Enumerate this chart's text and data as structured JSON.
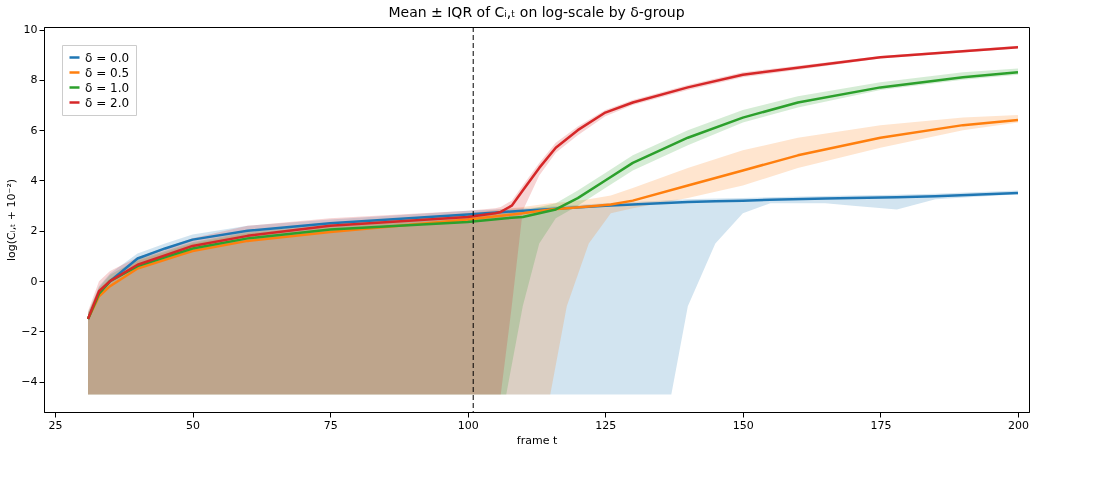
{
  "chart_data": {
    "type": "line",
    "title": "Mean ± IQR of Cᵢ,ₜ on log-scale by δ-group",
    "xlabel": "frame t",
    "ylabel": "log(Cᵢ,ₜ + 10⁻²)",
    "xlim": [
      23,
      202
    ],
    "ylim": [
      -5.2,
      10.1
    ],
    "xticks": [
      25,
      50,
      75,
      100,
      125,
      150,
      175,
      200
    ],
    "yticks": [
      -4,
      -2,
      0,
      2,
      4,
      6,
      8,
      10
    ],
    "grid": false,
    "legend": "top left",
    "marker": "none",
    "line_style": "solid",
    "ref_lines": [
      {
        "axis": "x",
        "value": 101,
        "color": "#000000",
        "line_style": "dashed"
      }
    ],
    "series": [
      {
        "name": "δ = 0.0",
        "color": "#1f77b4",
        "x": [
          31,
          33,
          35,
          40,
          45,
          50,
          60,
          75,
          100,
          110,
          125,
          135,
          137,
          140,
          145,
          150,
          155,
          165,
          170,
          178,
          185,
          200
        ],
        "values": [
          -1.5,
          -0.5,
          0,
          0.9,
          1.3,
          1.65,
          2.0,
          2.3,
          2.65,
          2.8,
          3.0,
          3.1,
          3.12,
          3.15,
          3.18,
          3.2,
          3.23,
          3.28,
          3.3,
          3.33,
          3.37,
          3.5
        ],
        "lower": [
          -4.5,
          -4.5,
          -4.5,
          -4.5,
          -4.5,
          -4.5,
          -4.5,
          -4.5,
          -4.5,
          -4.5,
          -4.5,
          -4.5,
          -4.5,
          -1.0,
          1.5,
          2.7,
          3.1,
          3.1,
          3.0,
          2.85,
          3.25,
          3.45
        ],
        "upper": [
          -1.3,
          -0.2,
          0.3,
          1.1,
          1.5,
          1.85,
          2.2,
          2.45,
          2.8,
          2.9,
          3.1,
          3.2,
          3.22,
          3.25,
          3.28,
          3.3,
          3.33,
          3.38,
          3.4,
          3.43,
          3.47,
          3.6
        ]
      },
      {
        "name": "δ = 0.5",
        "color": "#ff7f0e",
        "x": [
          31,
          33,
          35,
          40,
          50,
          60,
          75,
          100,
          110,
          115,
          118,
          122,
          126,
          130,
          140,
          150,
          160,
          175,
          190,
          200
        ],
        "values": [
          -1.5,
          -0.6,
          -0.2,
          0.5,
          1.2,
          1.6,
          1.95,
          2.45,
          2.7,
          2.85,
          2.9,
          2.97,
          3.05,
          3.2,
          3.8,
          4.4,
          5.0,
          5.7,
          6.2,
          6.4
        ],
        "lower": [
          -4.5,
          -4.5,
          -4.5,
          -4.5,
          -4.5,
          -4.5,
          -4.5,
          -4.5,
          -4.5,
          -4.5,
          -1.0,
          1.5,
          2.7,
          2.9,
          3.3,
          3.8,
          4.5,
          5.3,
          6.0,
          6.3
        ],
        "upper": [
          -1.3,
          -0.3,
          0.1,
          0.8,
          1.5,
          1.9,
          2.2,
          2.7,
          2.95,
          3.1,
          3.15,
          3.25,
          3.4,
          3.7,
          4.5,
          5.2,
          5.7,
          6.2,
          6.5,
          6.6
        ]
      },
      {
        "name": "δ = 1.0",
        "color": "#2ca02c",
        "x": [
          31,
          33,
          35,
          40,
          50,
          60,
          75,
          100,
          107,
          110,
          113,
          116,
          120,
          125,
          130,
          140,
          150,
          160,
          175,
          190,
          200
        ],
        "values": [
          -1.5,
          -0.5,
          0,
          0.6,
          1.3,
          1.7,
          2.05,
          2.35,
          2.5,
          2.55,
          2.7,
          2.85,
          3.3,
          4.0,
          4.7,
          5.7,
          6.5,
          7.1,
          7.7,
          8.1,
          8.3
        ],
        "lower": [
          -4.5,
          -4.5,
          -4.5,
          -4.5,
          -4.5,
          -4.5,
          -4.5,
          -4.5,
          -4.5,
          -1.0,
          1.5,
          2.5,
          3.0,
          3.7,
          4.4,
          5.4,
          6.3,
          6.9,
          7.6,
          8.0,
          8.2
        ],
        "upper": [
          -1.25,
          -0.25,
          0.25,
          0.85,
          1.55,
          1.95,
          2.3,
          2.6,
          2.75,
          2.8,
          2.95,
          3.1,
          3.6,
          4.3,
          5.0,
          6.0,
          6.8,
          7.35,
          7.9,
          8.3,
          8.45
        ]
      },
      {
        "name": "δ = 2.0",
        "color": "#d62728",
        "x": [
          31,
          33,
          35,
          40,
          50,
          60,
          75,
          100,
          105,
          106,
          108,
          110,
          113,
          116,
          120,
          125,
          130,
          140,
          150,
          175,
          200
        ],
        "values": [
          -1.5,
          -0.4,
          0,
          0.65,
          1.4,
          1.8,
          2.2,
          2.55,
          2.7,
          2.75,
          3.0,
          3.6,
          4.5,
          5.3,
          6.0,
          6.7,
          7.1,
          7.7,
          8.2,
          8.9,
          9.3
        ],
        "lower": [
          -4.5,
          -4.5,
          -4.5,
          -4.5,
          -4.5,
          -4.5,
          -4.5,
          -4.5,
          -4.5,
          -4.5,
          -1.0,
          2.8,
          4.2,
          5.1,
          5.8,
          6.55,
          7.0,
          7.6,
          8.1,
          8.85,
          9.25
        ],
        "upper": [
          -1.2,
          0,
          0.4,
          0.95,
          1.7,
          2.2,
          2.5,
          2.8,
          2.9,
          2.95,
          3.2,
          3.8,
          4.7,
          5.5,
          6.15,
          6.8,
          7.2,
          7.8,
          8.3,
          8.95,
          9.35
        ]
      }
    ]
  }
}
